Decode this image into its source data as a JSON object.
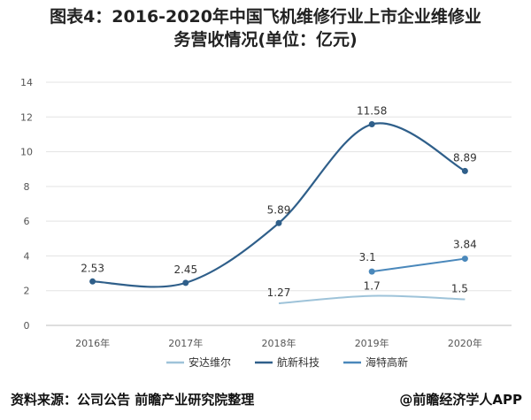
{
  "chart_data": {
    "type": "line",
    "title_line1": "图表4：2016-2020年中国飞机维修行业上市企业维修业",
    "title_line2": "务营收情况(单位：亿元)",
    "categories": [
      "2016年",
      "2017年",
      "2018年",
      "2019年",
      "2020年"
    ],
    "ylim": [
      0,
      14
    ],
    "yticks": [
      "0",
      "2",
      "4",
      "6",
      "8",
      "10",
      "12",
      "14"
    ],
    "grid": true,
    "legend_position": "bottom",
    "series": [
      {
        "name": "安达维尔",
        "color": "#9ec3d9",
        "values": [
          null,
          null,
          1.27,
          1.7,
          1.5
        ],
        "labels": [
          "",
          "",
          "1.27",
          "1.7",
          "1.5"
        ]
      },
      {
        "name": "航新科技",
        "color": "#2f5f8a",
        "values": [
          2.53,
          2.45,
          5.89,
          11.58,
          8.89
        ],
        "labels": [
          "2.53",
          "2.45",
          "5.89",
          "11.58",
          "8.89"
        ]
      },
      {
        "name": "海特高新",
        "color": "#4a88bb",
        "values": [
          null,
          null,
          null,
          3.1,
          3.84
        ],
        "labels": [
          "",
          "",
          "",
          "3.1",
          "3.84"
        ]
      }
    ]
  },
  "footer": {
    "source": "资料来源：公司公告 前瞻产业研究院整理",
    "brand": "@前瞻经济学人APP"
  }
}
